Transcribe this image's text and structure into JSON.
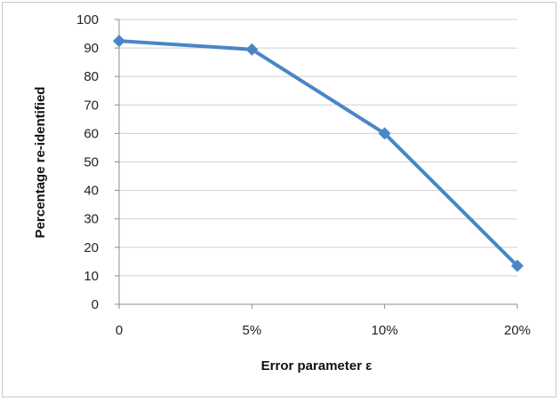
{
  "chart_data": {
    "type": "line",
    "title": "",
    "xlabel": "Error parameter ε",
    "ylabel": "Percentage re-identified",
    "categories": [
      "0",
      "5%",
      "10%",
      "20%"
    ],
    "series": [
      {
        "values": [
          92.5,
          89.5,
          60,
          13.5
        ],
        "color": "#4a86c5"
      }
    ],
    "ylim": [
      0,
      100
    ],
    "yticks": [
      "0",
      "10",
      "20",
      "30",
      "40",
      "50",
      "60",
      "70",
      "80",
      "90",
      "100"
    ],
    "grid": true,
    "legend": "none"
  }
}
